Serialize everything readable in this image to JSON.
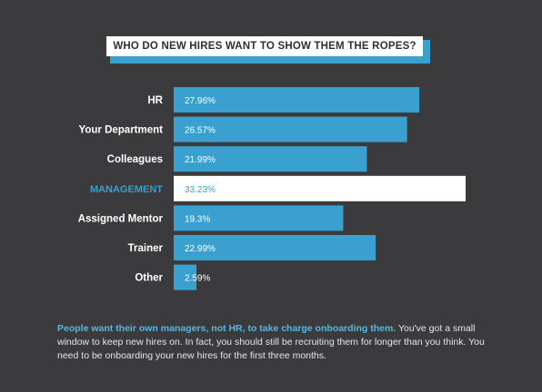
{
  "chart_data": {
    "type": "bar",
    "orientation": "horizontal",
    "title": "WHO DO NEW HIRES WANT TO SHOW THEM THE ROPES?",
    "categories": [
      "HR",
      "Your Department",
      "Colleagues",
      "MANAGEMENT",
      "Assigned Mentor",
      "Trainer",
      "Other"
    ],
    "values": [
      27.96,
      26.57,
      21.99,
      33.23,
      19.3,
      22.99,
      2.59
    ],
    "value_labels": [
      "27.96%",
      "26.57%",
      "21.99%",
      "33.23%",
      "19.3%",
      "22.99%",
      "2.59%"
    ],
    "highlight_index": 3,
    "xlim": [
      0,
      33.23
    ],
    "grid": false,
    "colors": {
      "bar": "#3aa0d0",
      "highlight_bar": "#ffffff",
      "highlight_label": "#3aa0d0",
      "label": "#ffffff",
      "background": "#3b3b3d"
    }
  },
  "caption": {
    "lead": "People want their own managers, not HR, to take charge onboarding them.",
    "body": " You've got a small window to keep new hires on. In fact, you should still be recruiting them for longer than you think. You need to be onboarding your new hires for the first three months."
  }
}
